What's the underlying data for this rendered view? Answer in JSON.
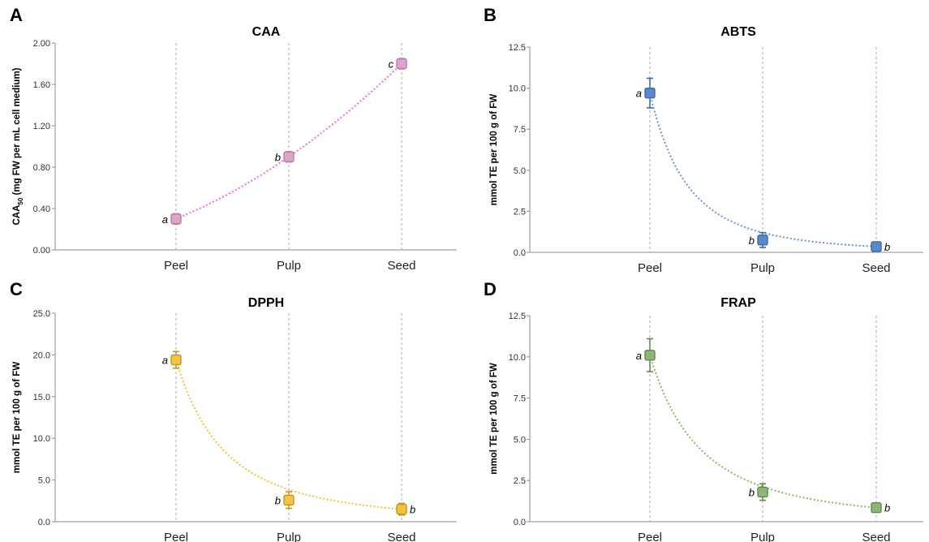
{
  "chart_data": [
    {
      "panel": "A",
      "type": "line",
      "title": "CAA",
      "ylabel": "CAA50 (mg FW per mL cell medium)",
      "ylabel_main": "CAA",
      "ylabel_sub": "50",
      "ylabel_rest": " (mg FW per mL cell medium)",
      "categories": [
        "Peel",
        "Pulp",
        "Seed"
      ],
      "ylim": [
        0,
        2.0
      ],
      "yticks": [
        "0.00",
        "0.40",
        "0.80",
        "1.20",
        "1.60",
        "2.00"
      ],
      "values": [
        0.3,
        0.9,
        1.8
      ],
      "errors": [
        0.05,
        0.05,
        0.05
      ],
      "sig_labels": [
        "a",
        "b",
        "c"
      ],
      "sig_side": [
        "left",
        "left",
        "left"
      ],
      "color": "#c27ba0",
      "fill": "#d9a7c7",
      "trend_color": "#f06ee0",
      "trend": "linear"
    },
    {
      "panel": "B",
      "type": "line",
      "title": "ABTS",
      "ylabel": "mmol TE per 100 g of FW",
      "categories": [
        "Peel",
        "Pulp",
        "Seed"
      ],
      "ylim": [
        0,
        12.5
      ],
      "yticks": [
        "0.0",
        "2.5",
        "5.0",
        "7.5",
        "10.0",
        "12.5"
      ],
      "values": [
        9.7,
        0.75,
        0.35
      ],
      "errors": [
        0.9,
        0.45,
        0.1
      ],
      "sig_labels": [
        "a",
        "b",
        "b"
      ],
      "sig_side": [
        "left",
        "left",
        "right"
      ],
      "color": "#3f6aa8",
      "fill": "#5b88c8",
      "trend_color": "#6b93d6",
      "trend": "decay"
    },
    {
      "panel": "C",
      "type": "line",
      "title": "DPPH",
      "ylabel": "mmol TE per 100 g of FW",
      "categories": [
        "Peel",
        "Pulp",
        "Seed"
      ],
      "ylim": [
        0,
        25.0
      ],
      "yticks": [
        "0.0",
        "5.0",
        "10.0",
        "15.0",
        "20.0",
        "25.0"
      ],
      "values": [
        19.4,
        2.6,
        1.5
      ],
      "errors": [
        1.0,
        1.0,
        0.7
      ],
      "sig_labels": [
        "a",
        "b",
        "b"
      ],
      "sig_side": [
        "left",
        "left",
        "right"
      ],
      "color": "#c9961a",
      "fill": "#f1c445",
      "trend_color": "#f0c23c",
      "trend": "decay"
    },
    {
      "panel": "D",
      "type": "line",
      "title": "FRAP",
      "ylabel": "mmol TE per 100 g of FW",
      "categories": [
        "Peel",
        "Pulp",
        "Seed"
      ],
      "ylim": [
        0,
        12.5
      ],
      "yticks": [
        "0.0",
        "2.5",
        "5.0",
        "7.5",
        "10.0",
        "12.5"
      ],
      "values": [
        10.1,
        1.8,
        0.85
      ],
      "errors": [
        1.0,
        0.5,
        0.2
      ],
      "sig_labels": [
        "a",
        "b",
        "b"
      ],
      "sig_side": [
        "left",
        "left",
        "right"
      ],
      "color": "#628a4a",
      "fill": "#90b57a",
      "trend_color": "#8cb86e",
      "trend": "decay"
    }
  ]
}
